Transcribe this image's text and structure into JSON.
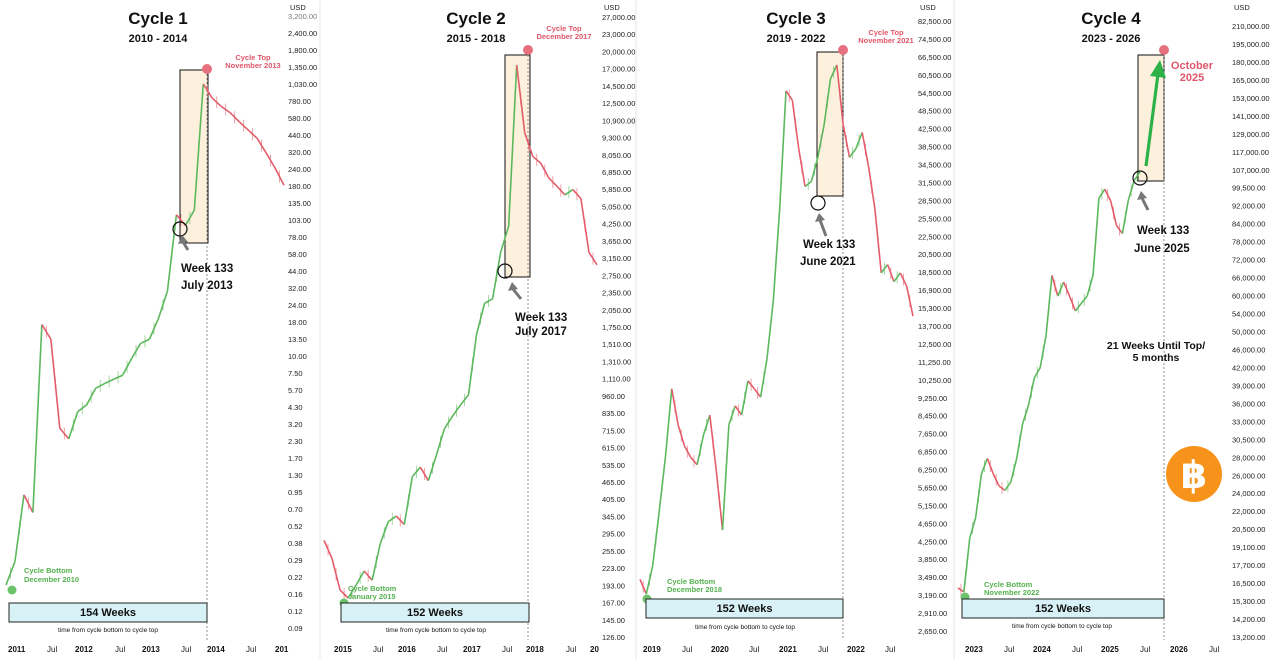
{
  "chart_data": [
    {
      "type": "line",
      "title": "Cycle 1",
      "subtitle": "2010 - 2014",
      "currency_label": "USD",
      "y_ticks": [
        "3,200.00",
        "2,400.00",
        "1,800.00",
        "1,350.00",
        "1,030.00",
        "780.00",
        "580.00",
        "440.00",
        "320.00",
        "240.00",
        "180.00",
        "135.00",
        "103.00",
        "78.00",
        "58.00",
        "44.00",
        "32.00",
        "24.00",
        "18.00",
        "13.50",
        "10.00",
        "7.50",
        "5.70",
        "4.30",
        "3.20",
        "2.30",
        "1.70",
        "1.30",
        "0.95",
        "0.70",
        "0.52",
        "0.38",
        "0.29",
        "0.22",
        "0.16",
        "0.12",
        "0.09"
      ],
      "x_ticks": [
        {
          "label": "2011",
          "bold": true
        },
        {
          "label": "Jul",
          "bold": false
        },
        {
          "label": "2012",
          "bold": true
        },
        {
          "label": "Jul",
          "bold": false
        },
        {
          "label": "2013",
          "bold": true
        },
        {
          "label": "Jul",
          "bold": false
        },
        {
          "label": "2014",
          "bold": true
        },
        {
          "label": "Jul",
          "bold": false
        },
        {
          "label": "201",
          "bold": true
        }
      ],
      "series": [
        {
          "values": [
            0.2,
            0.3,
            0.95,
            0.7,
            18,
            14,
            3,
            2.5,
            4,
            4.5,
            6,
            6.5,
            7,
            7.5,
            10,
            13,
            14,
            20,
            32,
            120,
            100,
            130,
            1150,
            900,
            780,
            700,
            600,
            520,
            450,
            350,
            270,
            200
          ]
        }
      ],
      "annotations": {
        "cycle_bottom": "Cycle Bottom",
        "cycle_bottom_date": "December 2010",
        "cycle_top": "Cycle Top",
        "cycle_top_date": "November 2013",
        "week": "Week 133",
        "week_date": "July 2013",
        "weeks_box": "154 Weeks",
        "footnote": "time from cycle bottom to cycle top"
      },
      "colors": {
        "up": "#5cb85c",
        "down": "#e35d6a"
      }
    },
    {
      "type": "line",
      "title": "Cycle 2",
      "subtitle": "2015 - 2018",
      "currency_label": "USD",
      "y_ticks": [
        "27,000.00",
        "23,000.00",
        "20,000.00",
        "17,000.00",
        "14,500.00",
        "12,500.00",
        "10,900.00",
        "9,300.00",
        "8,050.00",
        "6,850.00",
        "5,850.00",
        "5,050.00",
        "4,250.00",
        "3,650.00",
        "3,150.00",
        "2,750.00",
        "2,350.00",
        "2,050.00",
        "1,750.00",
        "1,510.00",
        "1,310.00",
        "1,110.00",
        "960.00",
        "835.00",
        "715.00",
        "615.00",
        "535.00",
        "465.00",
        "405.00",
        "345.00",
        "295.00",
        "255.00",
        "223.00",
        "193.00",
        "167.00",
        "145.00",
        "126.00"
      ],
      "x_ticks": [
        {
          "label": "2015",
          "bold": true
        },
        {
          "label": "Jul",
          "bold": false
        },
        {
          "label": "2016",
          "bold": true
        },
        {
          "label": "Jul",
          "bold": false
        },
        {
          "label": "2017",
          "bold": true
        },
        {
          "label": "Jul",
          "bold": false
        },
        {
          "label": "2018",
          "bold": true
        },
        {
          "label": "Jul",
          "bold": false
        },
        {
          "label": "20",
          "bold": true
        }
      ],
      "series": [
        {
          "values": [
            350,
            300,
            230,
            215,
            240,
            270,
            250,
            340,
            410,
            430,
            400,
            600,
            650,
            580,
            720,
            900,
            1000,
            1100,
            1200,
            2000,
            2600,
            2700,
            4000,
            5000,
            19500,
            11000,
            9000,
            8500,
            7500,
            7000,
            6500,
            6800,
            6300,
            4000,
            3600
          ]
        }
      ],
      "annotations": {
        "cycle_bottom": "Cycle Bottom",
        "cycle_bottom_date": "January 2015",
        "cycle_top": "Cycle Top",
        "cycle_top_date": "December 2017",
        "week": "Week 133",
        "week_date": "July 2017",
        "weeks_box": "152 Weeks",
        "footnote": "time from cycle bottom to cycle top"
      },
      "colors": {
        "up": "#5cb85c",
        "down": "#e35d6a"
      }
    },
    {
      "type": "line",
      "title": "Cycle 3",
      "subtitle": "2019 - 2022",
      "currency_label": "USD",
      "y_ticks": [
        "82,500.00",
        "74,500.00",
        "66,500.00",
        "60,500.00",
        "54,500.00",
        "48,500.00",
        "42,500.00",
        "38,500.00",
        "34,500.00",
        "31,500.00",
        "28,500.00",
        "25,500.00",
        "22,500.00",
        "20,500.00",
        "18,500.00",
        "16,900.00",
        "15,300.00",
        "13,700.00",
        "12,500.00",
        "11,250.00",
        "10,250.00",
        "9,250.00",
        "8,450.00",
        "7,650.00",
        "6,850.00",
        "6,250.00",
        "5,650.00",
        "5,150.00",
        "4,650.00",
        "4,250.00",
        "3,850.00",
        "3,490.00",
        "3,190.00",
        "2,910.00",
        "2,650.00"
      ],
      "x_ticks": [
        {
          "label": "2019",
          "bold": true
        },
        {
          "label": "Jul",
          "bold": false
        },
        {
          "label": "2020",
          "bold": true
        },
        {
          "label": "Jul",
          "bold": false
        },
        {
          "label": "2021",
          "bold": true
        },
        {
          "label": "Jul",
          "bold": false
        },
        {
          "label": "2022",
          "bold": true
        },
        {
          "label": "Jul",
          "bold": false
        }
      ],
      "series": [
        {
          "values": [
            3800,
            3500,
            4100,
            5500,
            7500,
            11000,
            9000,
            8000,
            7500,
            7200,
            8500,
            9500,
            7000,
            5000,
            9000,
            10000,
            9500,
            11500,
            11000,
            10500,
            13000,
            18000,
            30000,
            58000,
            55000,
            42000,
            34000,
            35000,
            40000,
            48000,
            62000,
            67000,
            48000,
            40000,
            42000,
            46000,
            38000,
            30000,
            21000,
            22000,
            20000,
            21000,
            19500,
            16500
          ]
        }
      ],
      "annotations": {
        "cycle_bottom": "Cycle Bottom",
        "cycle_bottom_date": "December 2018",
        "cycle_top": "Cycle Top",
        "cycle_top_date": "November 2021",
        "week": "Week 133",
        "week_date": "June 2021",
        "weeks_box": "152 Weeks",
        "footnote": "time from cycle bottom to cycle top"
      },
      "colors": {
        "up": "#5cb85c",
        "down": "#e35d6a"
      }
    },
    {
      "type": "line",
      "title": "Cycle 4",
      "subtitle": "2023 - 2026",
      "currency_label": "USD",
      "y_ticks": [
        "210,000.00",
        "195,000.00",
        "180,000.00",
        "165,000.00",
        "153,000.00",
        "141,000.00",
        "129,000.00",
        "117,000.00",
        "107,000.00",
        "99,500.00",
        "92,000.00",
        "84,000.00",
        "78,000.00",
        "72,000.00",
        "66,000.00",
        "60,000.00",
        "54,000.00",
        "50,000.00",
        "46,000.00",
        "42,000.00",
        "39,000.00",
        "36,000.00",
        "33,000.00",
        "30,500.00",
        "28,000.00",
        "26,000.00",
        "24,000.00",
        "22,000.00",
        "20,500.00",
        "19,100.00",
        "17,700.00",
        "16,500.00",
        "15,300.00",
        "14,200.00",
        "13,200.00"
      ],
      "x_ticks": [
        {
          "label": "2023",
          "bold": true
        },
        {
          "label": "Jul",
          "bold": false
        },
        {
          "label": "2024",
          "bold": true
        },
        {
          "label": "Jul",
          "bold": false
        },
        {
          "label": "2025",
          "bold": true
        },
        {
          "label": "Jul",
          "bold": false
        },
        {
          "label": "2026",
          "bold": true
        },
        {
          "label": "Jul",
          "bold": false
        }
      ],
      "series": [
        {
          "values": [
            16800,
            16500,
            21000,
            23000,
            28000,
            30000,
            28000,
            26500,
            26000,
            27000,
            30000,
            35000,
            38000,
            43000,
            45000,
            52000,
            68000,
            62000,
            66000,
            62000,
            58000,
            60000,
            62000,
            68000,
            96000,
            100000,
            95000,
            85000,
            82000,
            95000,
            104000,
            108000
          ]
        }
      ],
      "annotations": {
        "cycle_bottom": "Cycle Bottom",
        "cycle_bottom_date": "November 2022",
        "target": "October",
        "target_year": "2025",
        "week": "Week 133",
        "week_date": "June 2025",
        "until_top_1": "21 Weeks Until Top/",
        "until_top_2": "5 months",
        "weeks_box": "152 Weeks",
        "footnote": "time from cycle bottom to cycle top"
      },
      "colors": {
        "up": "#5cb85c",
        "down": "#e35d6a",
        "arrow": "#2db24a",
        "logo": "#f7931a"
      }
    }
  ],
  "logo": {
    "glyph": "฿",
    "name": "bitcoin-logo"
  }
}
